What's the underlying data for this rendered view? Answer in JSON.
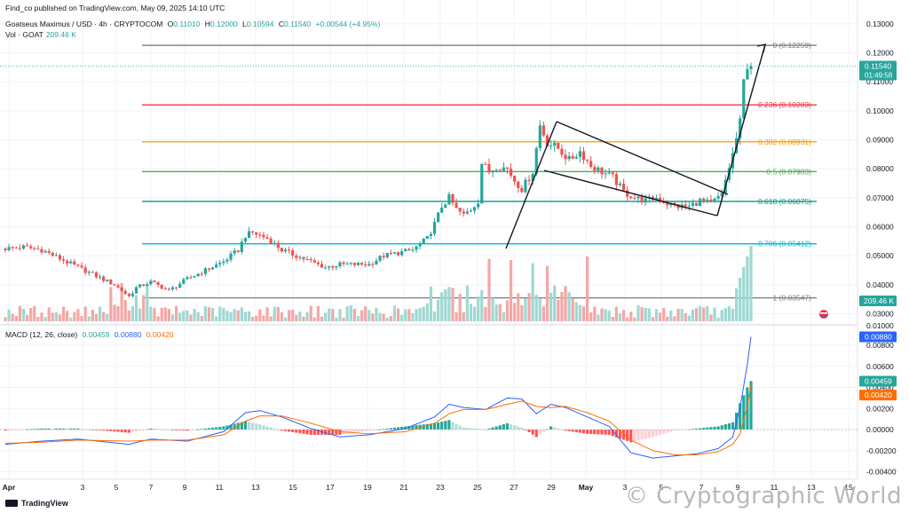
{
  "header": {
    "published": "Find_co published on TradingView.com, May 09, 2025 14:10 UTC",
    "symbol": "Goatseus Maximus / USD · 4h · CRYPTOCOM",
    "o_label": "O",
    "o": "0.11010",
    "h_label": "H",
    "h": "0.12000",
    "l_label": "L",
    "l": "0.10594",
    "c_label": "C",
    "c": "0.11540",
    "change": "+0.00544 (+4.95%)",
    "vol_label": "Vol · GOAT",
    "vol": "209.46 K",
    "macd_label": "MACD (12, 26, close)",
    "macd_hist": "0.00459",
    "macd_line": "0.00880",
    "macd_signal": "0.00420"
  },
  "price_axis": [
    "0.13000",
    "0.12000",
    "0.11000",
    "0.10000",
    "0.09000",
    "0.08000",
    "0.07000",
    "0.06000",
    "0.05000",
    "0.04000",
    "0.03000",
    "0.01000"
  ],
  "macd_axis": [
    "0.00800",
    "0.00600",
    "0.00400",
    "0.00200",
    "0.00000",
    "-0.00200",
    "-0.00400"
  ],
  "time_axis": [
    "Apr",
    "3",
    "5",
    "7",
    "9",
    "11",
    "13",
    "15",
    "17",
    "19",
    "21",
    "23",
    "25",
    "27",
    "29",
    "May",
    "3",
    "5",
    "7",
    "9",
    "11",
    "13",
    "15"
  ],
  "price_badge": {
    "value": "0.11540",
    "countdown": "01:49:58"
  },
  "vol_badge": "209.46 K",
  "macd_badges": {
    "line": "0.00880",
    "hist": "0.00459",
    "signal": "0.00420"
  },
  "fib_levels": [
    {
      "label": "0 (0.12259)",
      "price": 0.12259,
      "color": "#787b86"
    },
    {
      "label": "0.236 (0.10203)",
      "price": 0.10203,
      "color": "#f23645"
    },
    {
      "label": "0.382 (0.08931)",
      "price": 0.08931,
      "color": "#ff9800"
    },
    {
      "label": "0.5 (0.07903)",
      "price": 0.07903,
      "color": "#4caf50"
    },
    {
      "label": "0.618 (0.06875)",
      "price": 0.06875,
      "color": "#089981"
    },
    {
      "label": "0.786 (0.05412)",
      "price": 0.05412,
      "color": "#00bcd4"
    },
    {
      "label": "1 (0.03547)",
      "price": 0.03547,
      "color": "#787b86"
    }
  ],
  "colors": {
    "up": "#26a69a",
    "down": "#ef5350",
    "vol_up": "#9fd8d2",
    "vol_down": "#f4a7a5",
    "macd_line": "#2962ff",
    "signal_line": "#ff6d00",
    "hist_up_strong": "#26a69a",
    "hist_up_weak": "#b2dfdb",
    "hist_down_strong": "#ff5252",
    "hist_down_weak": "#ffcdd2",
    "grid": "#f0f3fa",
    "text": "#131722"
  },
  "watermark": "© Cryptographic World",
  "branding": "TradingView",
  "chart_data": {
    "type": "candlestick",
    "interval": "4h",
    "ylim": [
      0.025,
      0.13
    ],
    "price_close_path": [
      [
        0,
        0.0525
      ],
      [
        5,
        0.053
      ],
      [
        10,
        0.052
      ],
      [
        15,
        0.049
      ],
      [
        20,
        0.046
      ],
      [
        25,
        0.043
      ],
      [
        30,
        0.04
      ],
      [
        34,
        0.036
      ],
      [
        36,
        0.039
      ],
      [
        40,
        0.041
      ],
      [
        45,
        0.038
      ],
      [
        50,
        0.042
      ],
      [
        55,
        0.045
      ],
      [
        60,
        0.048
      ],
      [
        64,
        0.052
      ],
      [
        66,
        0.057
      ],
      [
        68,
        0.058
      ],
      [
        72,
        0.056
      ],
      [
        76,
        0.052
      ],
      [
        80,
        0.05
      ],
      [
        84,
        0.048
      ],
      [
        88,
        0.046
      ],
      [
        92,
        0.047
      ],
      [
        96,
        0.047
      ],
      [
        100,
        0.047
      ],
      [
        104,
        0.05
      ],
      [
        108,
        0.051
      ],
      [
        112,
        0.052
      ],
      [
        116,
        0.056
      ],
      [
        118,
        0.061
      ],
      [
        120,
        0.067
      ],
      [
        122,
        0.07
      ],
      [
        124,
        0.066
      ],
      [
        126,
        0.064
      ],
      [
        128,
        0.066
      ],
      [
        130,
        0.069
      ],
      [
        131,
        0.082
      ],
      [
        133,
        0.079
      ],
      [
        135,
        0.081
      ],
      [
        138,
        0.08
      ],
      [
        140,
        0.076
      ],
      [
        142,
        0.073
      ],
      [
        145,
        0.079
      ],
      [
        147,
        0.095
      ],
      [
        149,
        0.089
      ],
      [
        152,
        0.087
      ],
      [
        155,
        0.083
      ],
      [
        158,
        0.086
      ],
      [
        161,
        0.081
      ],
      [
        164,
        0.079
      ],
      [
        167,
        0.077
      ],
      [
        170,
        0.072
      ],
      [
        173,
        0.07
      ],
      [
        176,
        0.069
      ],
      [
        179,
        0.07
      ],
      [
        182,
        0.068
      ],
      [
        185,
        0.067
      ],
      [
        188,
        0.067
      ],
      [
        191,
        0.069
      ],
      [
        194,
        0.068
      ],
      [
        197,
        0.071
      ],
      [
        198,
        0.076
      ],
      [
        200,
        0.085
      ],
      [
        202,
        0.096
      ],
      [
        203,
        0.11
      ],
      [
        204,
        0.116
      ],
      [
        205,
        0.1154
      ]
    ],
    "macd_path": [
      [
        0,
        -0.0014
      ],
      [
        10,
        -0.0011
      ],
      [
        20,
        -0.0009
      ],
      [
        34,
        -0.0014
      ],
      [
        40,
        -0.0009
      ],
      [
        50,
        -0.0011
      ],
      [
        60,
        -0.0002
      ],
      [
        66,
        0.0016
      ],
      [
        70,
        0.0018
      ],
      [
        76,
        0.0012
      ],
      [
        84,
        0.0001
      ],
      [
        92,
        -0.0007
      ],
      [
        100,
        -0.0005
      ],
      [
        110,
        0.0001
      ],
      [
        118,
        0.0012
      ],
      [
        122,
        0.0024
      ],
      [
        126,
        0.0021
      ],
      [
        132,
        0.0019
      ],
      [
        138,
        0.003
      ],
      [
        142,
        0.0029
      ],
      [
        146,
        0.0015
      ],
      [
        150,
        0.0024
      ],
      [
        154,
        0.0021
      ],
      [
        160,
        0.0012
      ],
      [
        166,
        0.0003
      ],
      [
        172,
        -0.0022
      ],
      [
        178,
        -0.0027
      ],
      [
        184,
        -0.0025
      ],
      [
        190,
        -0.0023
      ],
      [
        196,
        -0.0018
      ],
      [
        200,
        -0.0007
      ],
      [
        202,
        0.0021
      ],
      [
        204,
        0.0062
      ],
      [
        205,
        0.0088
      ]
    ],
    "signal_path": [
      [
        0,
        -0.0013
      ],
      [
        10,
        -0.0012
      ],
      [
        20,
        -0.001
      ],
      [
        34,
        -0.0011
      ],
      [
        40,
        -0.001
      ],
      [
        50,
        -0.001
      ],
      [
        60,
        -0.0005
      ],
      [
        66,
        0.0008
      ],
      [
        70,
        0.0013
      ],
      [
        76,
        0.0013
      ],
      [
        84,
        0.0006
      ],
      [
        92,
        -0.0002
      ],
      [
        100,
        -0.0004
      ],
      [
        110,
        -0.0002
      ],
      [
        118,
        0.0006
      ],
      [
        122,
        0.0015
      ],
      [
        126,
        0.0019
      ],
      [
        132,
        0.0019
      ],
      [
        138,
        0.0024
      ],
      [
        142,
        0.0027
      ],
      [
        146,
        0.0022
      ],
      [
        150,
        0.0021
      ],
      [
        154,
        0.0022
      ],
      [
        160,
        0.0016
      ],
      [
        166,
        0.0008
      ],
      [
        172,
        -0.001
      ],
      [
        178,
        -0.002
      ],
      [
        184,
        -0.0024
      ],
      [
        190,
        -0.0024
      ],
      [
        196,
        -0.0021
      ],
      [
        200,
        -0.0014
      ],
      [
        202,
        -0.0004
      ],
      [
        204,
        0.0022
      ],
      [
        205,
        0.0042
      ]
    ]
  }
}
